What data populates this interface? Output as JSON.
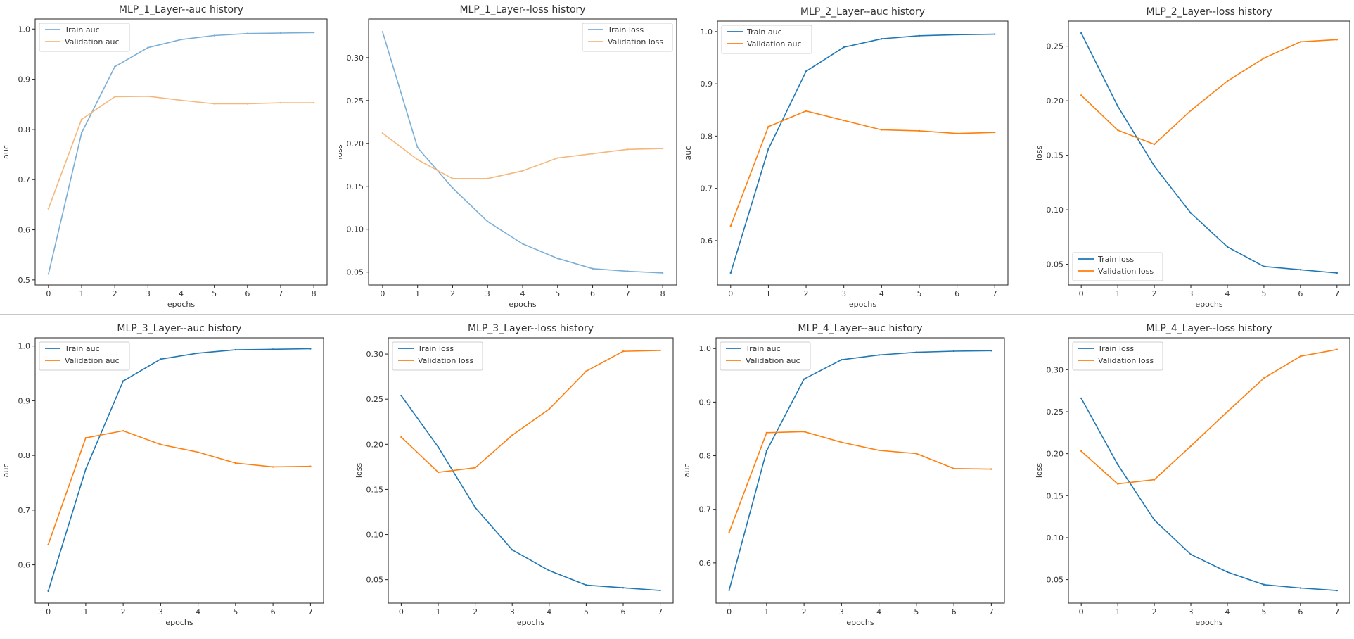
{
  "chart_data": [
    {
      "type": "line",
      "title": "MLP_1_Layer--auc history",
      "xlabel": "epochs",
      "ylabel": "auc",
      "xlim": [
        -0.4,
        8.4
      ],
      "ylim": [
        0.49,
        1.02
      ],
      "xticks": [
        0,
        1,
        2,
        3,
        4,
        5,
        6,
        7,
        8
      ],
      "yticks": [
        0.5,
        0.6,
        0.7,
        0.8,
        0.9,
        1.0
      ],
      "ytick_labels": [
        "0.5",
        "0.6",
        "0.7",
        "0.8",
        "0.9",
        "1.0"
      ],
      "legend_position": "top-left",
      "x": [
        0,
        1,
        2,
        3,
        4,
        5,
        6,
        7,
        8
      ],
      "series": [
        {
          "name": "Train auc",
          "color": "#7aaed6",
          "values": [
            0.512,
            0.793,
            0.925,
            0.963,
            0.979,
            0.987,
            0.991,
            0.992,
            0.993
          ]
        },
        {
          "name": "Validation auc",
          "color": "#f5b77a",
          "values": [
            0.642,
            0.82,
            0.865,
            0.866,
            0.858,
            0.851,
            0.851,
            0.853,
            0.853
          ]
        }
      ]
    },
    {
      "type": "line",
      "title": "MLP_1_Layer--loss history",
      "xlabel": "epochs",
      "ylabel": "loss",
      "xlim": [
        -0.4,
        8.4
      ],
      "ylim": [
        0.035,
        0.345
      ],
      "xticks": [
        0,
        1,
        2,
        3,
        4,
        5,
        6,
        7,
        8
      ],
      "yticks": [
        0.05,
        0.1,
        0.15,
        0.2,
        0.25,
        0.3
      ],
      "ytick_labels": [
        "0.05",
        "0.10",
        "0.15",
        "0.20",
        "0.25",
        "0.30"
      ],
      "legend_position": "top-right",
      "x": [
        0,
        1,
        2,
        3,
        4,
        5,
        6,
        7,
        8
      ],
      "series": [
        {
          "name": "Train loss",
          "color": "#7aaed6",
          "values": [
            0.33,
            0.195,
            0.148,
            0.109,
            0.083,
            0.066,
            0.054,
            0.051,
            0.049
          ]
        },
        {
          "name": "Validation loss",
          "color": "#f5b77a",
          "values": [
            0.212,
            0.181,
            0.159,
            0.159,
            0.168,
            0.183,
            0.188,
            0.193,
            0.194
          ]
        }
      ]
    },
    {
      "type": "line",
      "title": "MLP_2_Layer--auc history",
      "xlabel": "epochs",
      "ylabel": "auc",
      "xlim": [
        -0.35,
        7.35
      ],
      "ylim": [
        0.515,
        1.02
      ],
      "xticks": [
        0,
        1,
        2,
        3,
        4,
        5,
        6,
        7
      ],
      "yticks": [
        0.6,
        0.7,
        0.8,
        0.9,
        1.0
      ],
      "ytick_labels": [
        "0.6",
        "0.7",
        "0.8",
        "0.9",
        "1.0"
      ],
      "legend_position": "top-left",
      "x": [
        0,
        1,
        2,
        3,
        4,
        5,
        6,
        7
      ],
      "series": [
        {
          "name": "Train auc",
          "color": "#1f77b4",
          "values": [
            0.538,
            0.775,
            0.924,
            0.97,
            0.986,
            0.992,
            0.994,
            0.995
          ]
        },
        {
          "name": "Validation auc",
          "color": "#ff7f0e",
          "values": [
            0.628,
            0.818,
            0.848,
            0.83,
            0.812,
            0.81,
            0.805,
            0.807
          ]
        }
      ]
    },
    {
      "type": "line",
      "title": "MLP_2_Layer--loss history",
      "xlabel": "epochs",
      "ylabel": "loss",
      "xlim": [
        -0.35,
        7.35
      ],
      "ylim": [
        0.031,
        0.273
      ],
      "xticks": [
        0,
        1,
        2,
        3,
        4,
        5,
        6,
        7
      ],
      "yticks": [
        0.05,
        0.1,
        0.15,
        0.2,
        0.25
      ],
      "ytick_labels": [
        "0.05",
        "0.10",
        "0.15",
        "0.20",
        "0.25"
      ],
      "legend_position": "bottom-left",
      "x": [
        0,
        1,
        2,
        3,
        4,
        5,
        6,
        7
      ],
      "series": [
        {
          "name": "Train loss",
          "color": "#1f77b4",
          "values": [
            0.262,
            0.195,
            0.14,
            0.097,
            0.066,
            0.048,
            0.045,
            0.042
          ]
        },
        {
          "name": "Validation loss",
          "color": "#ff7f0e",
          "values": [
            0.205,
            0.173,
            0.16,
            0.191,
            0.218,
            0.239,
            0.254,
            0.256
          ]
        }
      ]
    },
    {
      "type": "line",
      "title": "MLP_3_Layer--auc history",
      "xlabel": "epochs",
      "ylabel": "auc",
      "xlim": [
        -0.35,
        7.35
      ],
      "ylim": [
        0.53,
        1.015
      ],
      "xticks": [
        0,
        1,
        2,
        3,
        4,
        5,
        6,
        7
      ],
      "yticks": [
        0.6,
        0.7,
        0.8,
        0.9,
        1.0
      ],
      "ytick_labels": [
        "0.6",
        "0.7",
        "0.8",
        "0.9",
        "1.0"
      ],
      "legend_position": "top-left",
      "x": [
        0,
        1,
        2,
        3,
        4,
        5,
        6,
        7
      ],
      "series": [
        {
          "name": "Train auc",
          "color": "#1f77b4",
          "values": [
            0.552,
            0.775,
            0.936,
            0.976,
            0.987,
            0.993,
            0.994,
            0.995
          ]
        },
        {
          "name": "Validation auc",
          "color": "#ff7f0e",
          "values": [
            0.637,
            0.832,
            0.845,
            0.82,
            0.806,
            0.786,
            0.779,
            0.78
          ]
        }
      ]
    },
    {
      "type": "line",
      "title": "MLP_3_Layer--loss history",
      "xlabel": "epochs",
      "ylabel": "loss",
      "xlim": [
        -0.35,
        7.35
      ],
      "ylim": [
        0.024,
        0.318
      ],
      "xticks": [
        0,
        1,
        2,
        3,
        4,
        5,
        6,
        7
      ],
      "yticks": [
        0.05,
        0.1,
        0.15,
        0.2,
        0.25,
        0.3
      ],
      "ytick_labels": [
        "0.05",
        "0.10",
        "0.15",
        "0.20",
        "0.25",
        "0.30"
      ],
      "legend_position": "top-left",
      "x": [
        0,
        1,
        2,
        3,
        4,
        5,
        6,
        7
      ],
      "series": [
        {
          "name": "Train loss",
          "color": "#1f77b4",
          "values": [
            0.254,
            0.197,
            0.13,
            0.083,
            0.06,
            0.044,
            0.041,
            0.038
          ]
        },
        {
          "name": "Validation loss",
          "color": "#ff7f0e",
          "values": [
            0.208,
            0.169,
            0.174,
            0.21,
            0.239,
            0.281,
            0.303,
            0.304
          ]
        }
      ]
    },
    {
      "type": "line",
      "title": "MLP_4_Layer--auc history",
      "xlabel": "epochs",
      "ylabel": "auc",
      "xlim": [
        -0.35,
        7.35
      ],
      "ylim": [
        0.525,
        1.02
      ],
      "xticks": [
        0,
        1,
        2,
        3,
        4,
        5,
        6,
        7
      ],
      "yticks": [
        0.6,
        0.7,
        0.8,
        0.9,
        1.0
      ],
      "ytick_labels": [
        "0.6",
        "0.7",
        "0.8",
        "0.9",
        "1.0"
      ],
      "legend_position": "top-left",
      "x": [
        0,
        1,
        2,
        3,
        4,
        5,
        6,
        7
      ],
      "series": [
        {
          "name": "Train auc",
          "color": "#1f77b4",
          "values": [
            0.549,
            0.809,
            0.943,
            0.979,
            0.988,
            0.993,
            0.995,
            0.996
          ]
        },
        {
          "name": "Validation auc",
          "color": "#ff7f0e",
          "values": [
            0.657,
            0.843,
            0.845,
            0.825,
            0.81,
            0.804,
            0.776,
            0.775
          ]
        }
      ]
    },
    {
      "type": "line",
      "title": "MLP_4_Layer--loss history",
      "xlabel": "epochs",
      "ylabel": "loss",
      "xlim": [
        -0.35,
        7.35
      ],
      "ylim": [
        0.022,
        0.338
      ],
      "xticks": [
        0,
        1,
        2,
        3,
        4,
        5,
        6,
        7
      ],
      "yticks": [
        0.05,
        0.1,
        0.15,
        0.2,
        0.25,
        0.3
      ],
      "ytick_labels": [
        "0.05",
        "0.10",
        "0.15",
        "0.20",
        "0.25",
        "0.30"
      ],
      "legend_position": "top-left",
      "x": [
        0,
        1,
        2,
        3,
        4,
        5,
        6,
        7
      ],
      "series": [
        {
          "name": "Train loss",
          "color": "#1f77b4",
          "values": [
            0.266,
            0.187,
            0.121,
            0.08,
            0.059,
            0.044,
            0.04,
            0.037
          ]
        },
        {
          "name": "Validation loss",
          "color": "#ff7f0e",
          "values": [
            0.203,
            0.164,
            0.169,
            0.209,
            0.25,
            0.29,
            0.316,
            0.324
          ]
        }
      ]
    }
  ]
}
